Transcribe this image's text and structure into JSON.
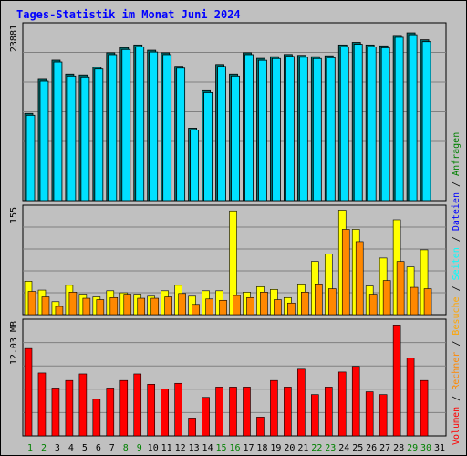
{
  "title": "Tages-Statistik im Monat Juni 2024",
  "colors": {
    "background": "#c0c0c0",
    "title": "#0000ff",
    "grid": "#808080",
    "bar_outline": "#000000",
    "anfragen": "#00e0ff",
    "dateien": "#008a8a",
    "seiten": "#00aaff",
    "besuche": "#ffff00",
    "rechner": "#ff8800",
    "volumen": "#ff0000",
    "weekend_label": "#008000",
    "weekday_label": "#000000"
  },
  "right_legend": {
    "top": [
      {
        "text": "Anfragen",
        "color": "#008000"
      },
      {
        "text": " / ",
        "color": "#000000"
      },
      {
        "text": "Dateien",
        "color": "#0000ff"
      },
      {
        "text": " / ",
        "color": "#000000"
      },
      {
        "text": "Seiten",
        "color": "#00ffff"
      },
      {
        "text": " / ",
        "color": "#000000"
      },
      {
        "text": "Besuche",
        "color": "#ffa500"
      }
    ],
    "bottom": [
      {
        "text": " / ",
        "color": "#000000"
      },
      {
        "text": "Rechner",
        "color": "#ff8800"
      },
      {
        "text": " / ",
        "color": "#000000"
      },
      {
        "text": "Volumen",
        "color": "#ff0000"
      }
    ]
  },
  "chart_data": [
    {
      "type": "bar",
      "panel": "top",
      "y_label": "23881",
      "ylim": [
        0,
        23881
      ],
      "categories": [
        "1",
        "2",
        "3",
        "4",
        "5",
        "6",
        "7",
        "8",
        "9",
        "10",
        "11",
        "12",
        "13",
        "14",
        "15",
        "16",
        "17",
        "18",
        "19",
        "20",
        "21",
        "22",
        "23",
        "24",
        "25",
        "26",
        "27",
        "28",
        "29",
        "30"
      ],
      "weekend": [
        "1",
        "2",
        "8",
        "9",
        "15",
        "16",
        "22",
        "23",
        "29",
        "30"
      ],
      "series": [
        {
          "key": "anfragen",
          "values": [
            11968,
            16634,
            19256,
            17346,
            17227,
            18297,
            20265,
            20979,
            21336,
            20622,
            20265,
            18416,
            9947,
            15087,
            18654,
            17346,
            20265,
            19494,
            19731,
            20028,
            19909,
            19731,
            19850,
            21336,
            21692,
            21336,
            21217,
            22643,
            23000,
            22049
          ]
        },
        {
          "key": "dateien",
          "values": [
            11968,
            16634,
            19256,
            17346,
            17227,
            18297,
            20265,
            20979,
            21336,
            20622,
            20265,
            18416,
            9947,
            15087,
            18654,
            17346,
            20265,
            19494,
            19731,
            20028,
            19909,
            19731,
            19850,
            21336,
            21692,
            21336,
            21217,
            22643,
            23000,
            22049
          ]
        },
        {
          "key": "seiten",
          "values": [
            11712,
            16378,
            19000,
            17090,
            16971,
            18041,
            20009,
            20723,
            21080,
            20366,
            20009,
            18160,
            9691,
            14831,
            18398,
            17090,
            20009,
            19238,
            19475,
            19772,
            19653,
            19475,
            19594,
            21080,
            21436,
            21080,
            20961,
            22387,
            22744,
            21793
          ]
        }
      ]
    },
    {
      "type": "bar",
      "panel": "middle",
      "y_label": "155",
      "ylim": [
        0,
        155
      ],
      "categories": [
        "1",
        "2",
        "3",
        "4",
        "5",
        "6",
        "7",
        "8",
        "9",
        "10",
        "11",
        "12",
        "13",
        "14",
        "15",
        "16",
        "17",
        "18",
        "19",
        "20",
        "21",
        "22",
        "23",
        "24",
        "25",
        "26",
        "27",
        "28",
        "29",
        "30"
      ],
      "series": [
        {
          "key": "besuche",
          "values": [
            49,
            36,
            19,
            43,
            30,
            26,
            35,
            32,
            30,
            27,
            35,
            43,
            27,
            35,
            35,
            152,
            33,
            41,
            37,
            25,
            45,
            78,
            89,
            153,
            125,
            42,
            83,
            139,
            70,
            95
          ]
        },
        {
          "key": "rechner",
          "values": [
            34,
            26,
            12,
            33,
            24,
            22,
            25,
            30,
            24,
            24,
            26,
            31,
            15,
            23,
            21,
            28,
            25,
            33,
            22,
            17,
            33,
            45,
            38,
            125,
            107,
            30,
            50,
            78,
            40,
            38
          ]
        }
      ]
    },
    {
      "type": "bar",
      "panel": "bottom",
      "y_label": "12.03 MB",
      "ylim": [
        0,
        12.03
      ],
      "categories": [
        "1",
        "2",
        "3",
        "4",
        "5",
        "6",
        "7",
        "8",
        "9",
        "10",
        "11",
        "12",
        "13",
        "14",
        "15",
        "16",
        "17",
        "18",
        "19",
        "20",
        "21",
        "22",
        "23",
        "24",
        "25",
        "26",
        "27",
        "28",
        "29",
        "30"
      ],
      "series": [
        {
          "key": "volumen",
          "values": [
            9.3,
            6.7,
            5.1,
            5.9,
            6.6,
            3.9,
            5.1,
            5.9,
            6.6,
            5.5,
            5.0,
            5.6,
            1.9,
            4.1,
            5.2,
            5.2,
            5.2,
            2.0,
            5.9,
            5.2,
            7.1,
            4.4,
            5.2,
            6.8,
            7.4,
            4.7,
            4.4,
            11.8,
            8.3,
            5.9
          ]
        }
      ]
    }
  ],
  "x_labels": [
    "1",
    "2",
    "3",
    "4",
    "5",
    "6",
    "7",
    "8",
    "9",
    "10",
    "11",
    "12",
    "13",
    "14",
    "15",
    "16",
    "17",
    "18",
    "19",
    "20",
    "21",
    "22",
    "23",
    "24",
    "25",
    "26",
    "27",
    "28",
    "29",
    "30",
    "31"
  ]
}
